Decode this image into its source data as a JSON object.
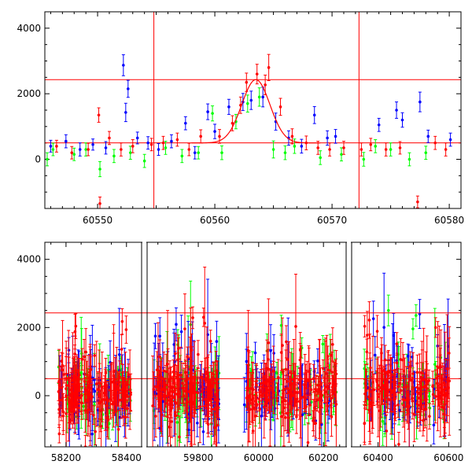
{
  "chart_data": [
    {
      "type": "scatter",
      "panel": "top",
      "title": "",
      "xlabel": "",
      "ylabel": "",
      "xlim": [
        60545.5,
        60581
      ],
      "ylim": [
        -1500,
        4500
      ],
      "xticks": [
        60550,
        60560,
        60570,
        60580
      ],
      "xtick_labels": [
        "60550",
        "60560",
        "60570",
        "60580"
      ],
      "yticks": [
        0,
        2000,
        4000
      ],
      "ytick_labels": [
        "0",
        "2000",
        "4000"
      ],
      "grid": false,
      "legend": "none",
      "horizontal_lines": [
        2430,
        500
      ],
      "vertical_lines": [
        60554.8,
        60572.3
      ],
      "model_curve": {
        "type": "gaussian_on_baseline",
        "baseline": 500,
        "peak": 2430,
        "center": 60563.5,
        "sigma": 1.2,
        "x_range": [
          60558,
          60569
        ],
        "color": "#ff0000"
      },
      "series": [
        {
          "color": "#0000ff",
          "points": [
            [
              60546,
              400,
              180
            ],
            [
              60547.3,
              550,
              200
            ],
            [
              60548.5,
              300,
              200
            ],
            [
              60549.6,
              450,
              170
            ],
            [
              60550.7,
              350,
              190
            ],
            [
              60552.2,
              2870,
              320
            ],
            [
              60552.4,
              1430,
              280
            ],
            [
              60552.6,
              2150,
              260
            ],
            [
              60553.4,
              650,
              180
            ],
            [
              60554.3,
              500,
              190
            ],
            [
              60555.2,
              300,
              180
            ],
            [
              60556.3,
              550,
              200
            ],
            [
              60557.5,
              1100,
              200
            ],
            [
              60558.3,
              200,
              190
            ],
            [
              60559.4,
              1450,
              240
            ],
            [
              60560.0,
              850,
              220
            ],
            [
              60561.2,
              1600,
              230
            ],
            [
              60562.4,
              1750,
              260
            ],
            [
              60563.1,
              1800,
              280
            ],
            [
              60564.1,
              1900,
              300
            ],
            [
              60565.2,
              1150,
              260
            ],
            [
              60566.3,
              650,
              220
            ],
            [
              60567.4,
              400,
              210
            ],
            [
              60568.5,
              1350,
              260
            ],
            [
              60569.6,
              650,
              220
            ],
            [
              60570.3,
              700,
              210
            ],
            [
              60574.0,
              1050,
              200
            ],
            [
              60575.5,
              1500,
              250
            ],
            [
              60576.0,
              1200,
              220
            ],
            [
              60577.5,
              1750,
              300
            ],
            [
              60578.2,
              700,
              190
            ],
            [
              60580.1,
              600,
              200
            ]
          ]
        },
        {
          "color": "#00ff00",
          "points": [
            [
              60545.7,
              0,
              200
            ],
            [
              60546.2,
              300,
              190
            ],
            [
              60548.0,
              150,
              190
            ],
            [
              60549.0,
              300,
              200
            ],
            [
              60550.2,
              -300,
              230
            ],
            [
              60551.4,
              100,
              200
            ],
            [
              60552.8,
              200,
              200
            ],
            [
              60554.0,
              -50,
              200
            ],
            [
              60555.8,
              350,
              200
            ],
            [
              60557.2,
              100,
              200
            ],
            [
              60558.6,
              200,
              190
            ],
            [
              60559.8,
              1400,
              230
            ],
            [
              60560.6,
              200,
              210
            ],
            [
              60561.8,
              1150,
              220
            ],
            [
              60562.8,
              1700,
              260
            ],
            [
              60563.8,
              1900,
              280
            ],
            [
              60565.0,
              300,
              260
            ],
            [
              60566.0,
              200,
              210
            ],
            [
              60566.8,
              400,
              220
            ],
            [
              60569.0,
              50,
              210
            ],
            [
              60570.8,
              150,
              200
            ],
            [
              60572.7,
              0,
              210
            ],
            [
              60573.7,
              400,
              200
            ],
            [
              60575.0,
              300,
              200
            ],
            [
              60576.6,
              0,
              200
            ],
            [
              60578.0,
              200,
              200
            ]
          ]
        },
        {
          "color": "#ff0000",
          "points": [
            [
              60546.5,
              400,
              180
            ],
            [
              60547.8,
              200,
              190
            ],
            [
              60549.2,
              300,
              190
            ],
            [
              60550.1,
              1350,
              220
            ],
            [
              60550.2,
              -1350,
              200
            ],
            [
              60551.0,
              650,
              200
            ],
            [
              60552.0,
              300,
              200
            ],
            [
              60553.0,
              400,
              200
            ],
            [
              60554.6,
              450,
              190
            ],
            [
              60555.6,
              500,
              200
            ],
            [
              60556.8,
              600,
              200
            ],
            [
              60557.8,
              300,
              190
            ],
            [
              60558.8,
              700,
              200
            ],
            [
              60560.4,
              700,
              210
            ],
            [
              60561.5,
              1100,
              230
            ],
            [
              60562.2,
              1650,
              250
            ],
            [
              60562.7,
              2350,
              280
            ],
            [
              60563.6,
              2600,
              300
            ],
            [
              60564.3,
              2270,
              300
            ],
            [
              60564.6,
              2800,
              400
            ],
            [
              60565.6,
              1600,
              260
            ],
            [
              60566.6,
              700,
              230
            ],
            [
              60567.8,
              500,
              210
            ],
            [
              60568.8,
              350,
              200
            ],
            [
              60569.8,
              300,
              200
            ],
            [
              60571.0,
              350,
              200
            ],
            [
              60572.5,
              300,
              200
            ],
            [
              60573.3,
              450,
              190
            ],
            [
              60574.6,
              300,
              200
            ],
            [
              60575.8,
              350,
              190
            ],
            [
              60577.3,
              -1300,
              180
            ],
            [
              60578.8,
              500,
              200
            ],
            [
              60579.7,
              300,
              200
            ]
          ]
        }
      ]
    },
    {
      "type": "scatter",
      "panel": "bottom",
      "title": "",
      "xlabel": "",
      "ylabel": "",
      "ylim": [
        -1500,
        4500
      ],
      "yticks": [
        0,
        2000,
        4000
      ],
      "ytick_labels": [
        "0",
        "2000",
        "4000"
      ],
      "grid": false,
      "legend": "none",
      "horizontal_lines": [
        2430,
        500
      ],
      "broken_x_axis": true,
      "segments": [
        {
          "xlim": [
            58130,
            58450
          ],
          "xticks": [
            58200,
            58400
          ],
          "xtick_labels": [
            "58200",
            "58400"
          ],
          "data_range": [
            58175,
            58415
          ]
        },
        {
          "xlim": [
            59610,
            59940
          ],
          "xticks": [
            59800
          ],
          "xtick_labels": [
            "59800"
          ],
          "data_range": [
            59630,
            59880
          ]
        },
        {
          "xlim": [
            59930,
            60270
          ],
          "xticks": [
            60000,
            60200
          ],
          "xtick_labels": [
            "60000",
            "60200"
          ],
          "data_range": [
            59955,
            60240
          ]
        },
        {
          "xlim": [
            60325,
            60635
          ],
          "xticks": [
            60400,
            60600
          ],
          "xtick_labels": [
            "60400",
            "60600"
          ],
          "data_range": [
            60360,
            60605
          ]
        }
      ],
      "series": [
        {
          "color": "#0000ff",
          "note_points": "dense light-curve scatter around baseline with large excursions"
        },
        {
          "color": "#00ff00",
          "note_points": "dense light-curve scatter around baseline with large excursions"
        },
        {
          "color": "#ff0000",
          "note_points": "dense light-curve scatter around baseline with large excursions"
        }
      ]
    }
  ]
}
